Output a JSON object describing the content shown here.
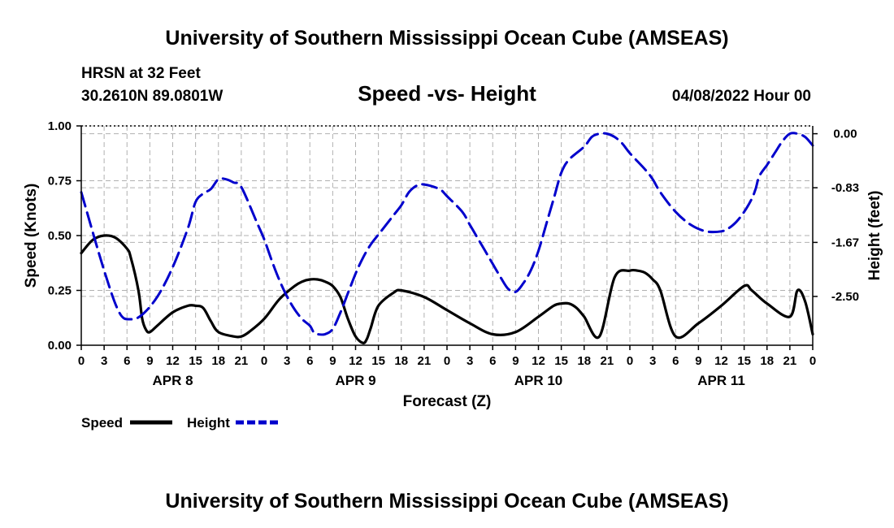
{
  "header": {
    "title_top": "University of Southern Mississippi Ocean Cube (AMSEAS)",
    "title_bottom": "University of Southern Mississippi Ocean Cube (AMSEAS)",
    "station": "HRSN at 32 Feet",
    "coords": "30.2610N  89.0801W",
    "date": "04/08/2022 Hour 00"
  },
  "chart_data": {
    "type": "line",
    "title": "Speed -vs- Height",
    "xlabel": "Forecast (Z)",
    "ylabel_left": "Speed (Knots)",
    "ylabel_right": "Height (feet)",
    "x_range": [
      0,
      96
    ],
    "x_ticks": [
      0,
      3,
      6,
      9,
      12,
      15,
      18,
      21,
      24,
      27,
      30,
      33,
      36,
      39,
      42,
      45,
      48,
      51,
      54,
      57,
      60,
      63,
      66,
      69,
      72,
      75,
      78,
      81,
      84,
      87,
      90,
      93,
      96
    ],
    "x_tick_labels": [
      "0",
      "3",
      "6",
      "9",
      "12",
      "15",
      "18",
      "21",
      "0",
      "3",
      "6",
      "9",
      "12",
      "15",
      "18",
      "21",
      "0",
      "3",
      "6",
      "9",
      "12",
      "15",
      "18",
      "21",
      "0",
      "3",
      "6",
      "9",
      "12",
      "15",
      "18",
      "21",
      "0"
    ],
    "day_labels": [
      {
        "x": 12,
        "label": "APR 8"
      },
      {
        "x": 36,
        "label": "APR 9"
      },
      {
        "x": 60,
        "label": "APR 10"
      },
      {
        "x": 84,
        "label": "APR 11"
      }
    ],
    "y_left": {
      "range": [
        0,
        1.0
      ],
      "ticks": [
        0,
        0.25,
        0.5,
        0.75,
        1.0
      ],
      "tick_labels": [
        "0.00",
        "0.25",
        "0.50",
        "0.75",
        "1.00"
      ]
    },
    "y_right": {
      "range": [
        -3.25,
        0.12
      ],
      "ticks": [
        0,
        -0.83,
        -1.67,
        -2.5
      ],
      "tick_labels": [
        "0.00",
        "-0.83",
        "-1.67",
        "-2.50"
      ]
    },
    "grid": true,
    "legend": [
      {
        "name": "Speed",
        "color": "#000000",
        "dash": "solid"
      },
      {
        "name": "Height",
        "color": "#0000cc",
        "dash": "dashed"
      }
    ],
    "series": [
      {
        "name": "Speed",
        "axis": "left",
        "color": "#000000",
        "x": [
          0,
          1.5,
          3,
          4.5,
          6,
          6.5,
          7.5,
          8,
          8.5,
          9,
          10,
          12,
          14,
          15,
          16,
          17,
          18,
          20,
          21,
          22,
          24,
          26,
          28,
          29,
          30,
          31,
          32,
          33,
          34,
          35,
          36,
          37,
          37.5,
          38,
          39,
          41,
          42,
          45,
          48,
          51,
          54,
          57,
          60,
          62,
          63,
          64,
          65,
          66,
          68,
          70,
          72,
          73,
          74,
          75,
          76,
          78,
          81,
          84,
          87,
          88,
          90,
          93,
          94,
          95,
          96
        ],
        "y": [
          0.42,
          0.48,
          0.5,
          0.49,
          0.44,
          0.4,
          0.25,
          0.12,
          0.07,
          0.06,
          0.09,
          0.15,
          0.18,
          0.18,
          0.17,
          0.11,
          0.06,
          0.04,
          0.04,
          0.06,
          0.12,
          0.21,
          0.27,
          0.29,
          0.3,
          0.3,
          0.29,
          0.27,
          0.22,
          0.12,
          0.04,
          0.01,
          0.03,
          0.08,
          0.18,
          0.24,
          0.25,
          0.22,
          0.16,
          0.1,
          0.05,
          0.06,
          0.13,
          0.18,
          0.19,
          0.19,
          0.17,
          0.13,
          0.04,
          0.31,
          0.34,
          0.34,
          0.33,
          0.3,
          0.25,
          0.04,
          0.1,
          0.18,
          0.27,
          0.25,
          0.19,
          0.13,
          0.25,
          0.2,
          0.05
        ]
      },
      {
        "name": "Height",
        "axis": "right",
        "color": "#0000cc",
        "x": [
          0,
          3,
          5,
          6.5,
          8,
          10,
          12,
          14,
          15,
          16,
          17,
          18,
          19,
          20,
          21,
          23,
          24,
          25,
          26,
          27,
          28,
          29,
          30,
          30.5,
          31,
          32,
          33,
          34,
          35,
          36,
          37,
          38,
          39,
          40,
          41,
          42,
          43,
          44,
          45,
          47,
          48,
          50,
          51,
          52,
          53,
          54,
          55,
          56,
          57,
          58,
          59,
          60,
          61,
          62,
          63,
          64,
          66,
          67,
          68,
          69,
          70,
          71,
          72,
          74,
          75,
          76,
          78,
          80,
          82,
          84,
          85,
          86,
          87,
          88,
          88.5,
          89,
          90,
          91,
          92,
          93,
          94,
          95,
          96
        ],
        "y": [
          -0.9,
          -2.1,
          -2.75,
          -2.85,
          -2.78,
          -2.5,
          -2.05,
          -1.45,
          -1.05,
          -0.92,
          -0.85,
          -0.7,
          -0.7,
          -0.75,
          -0.82,
          -1.35,
          -1.62,
          -1.95,
          -2.25,
          -2.5,
          -2.7,
          -2.85,
          -2.95,
          -3.05,
          -3.08,
          -3.08,
          -3.0,
          -2.75,
          -2.45,
          -2.15,
          -1.9,
          -1.7,
          -1.55,
          -1.4,
          -1.25,
          -1.1,
          -0.9,
          -0.8,
          -0.78,
          -0.85,
          -0.96,
          -1.2,
          -1.4,
          -1.6,
          -1.8,
          -2.0,
          -2.2,
          -2.38,
          -2.43,
          -2.3,
          -2.1,
          -1.8,
          -1.4,
          -1.0,
          -0.6,
          -0.4,
          -0.2,
          -0.05,
          0.0,
          0.0,
          -0.05,
          -0.15,
          -0.3,
          -0.55,
          -0.7,
          -0.9,
          -1.2,
          -1.4,
          -1.5,
          -1.5,
          -1.45,
          -1.35,
          -1.2,
          -1.0,
          -0.85,
          -0.65,
          -0.48,
          -0.3,
          -0.12,
          0.0,
          0.0,
          -0.05,
          -0.18
        ]
      }
    ]
  }
}
